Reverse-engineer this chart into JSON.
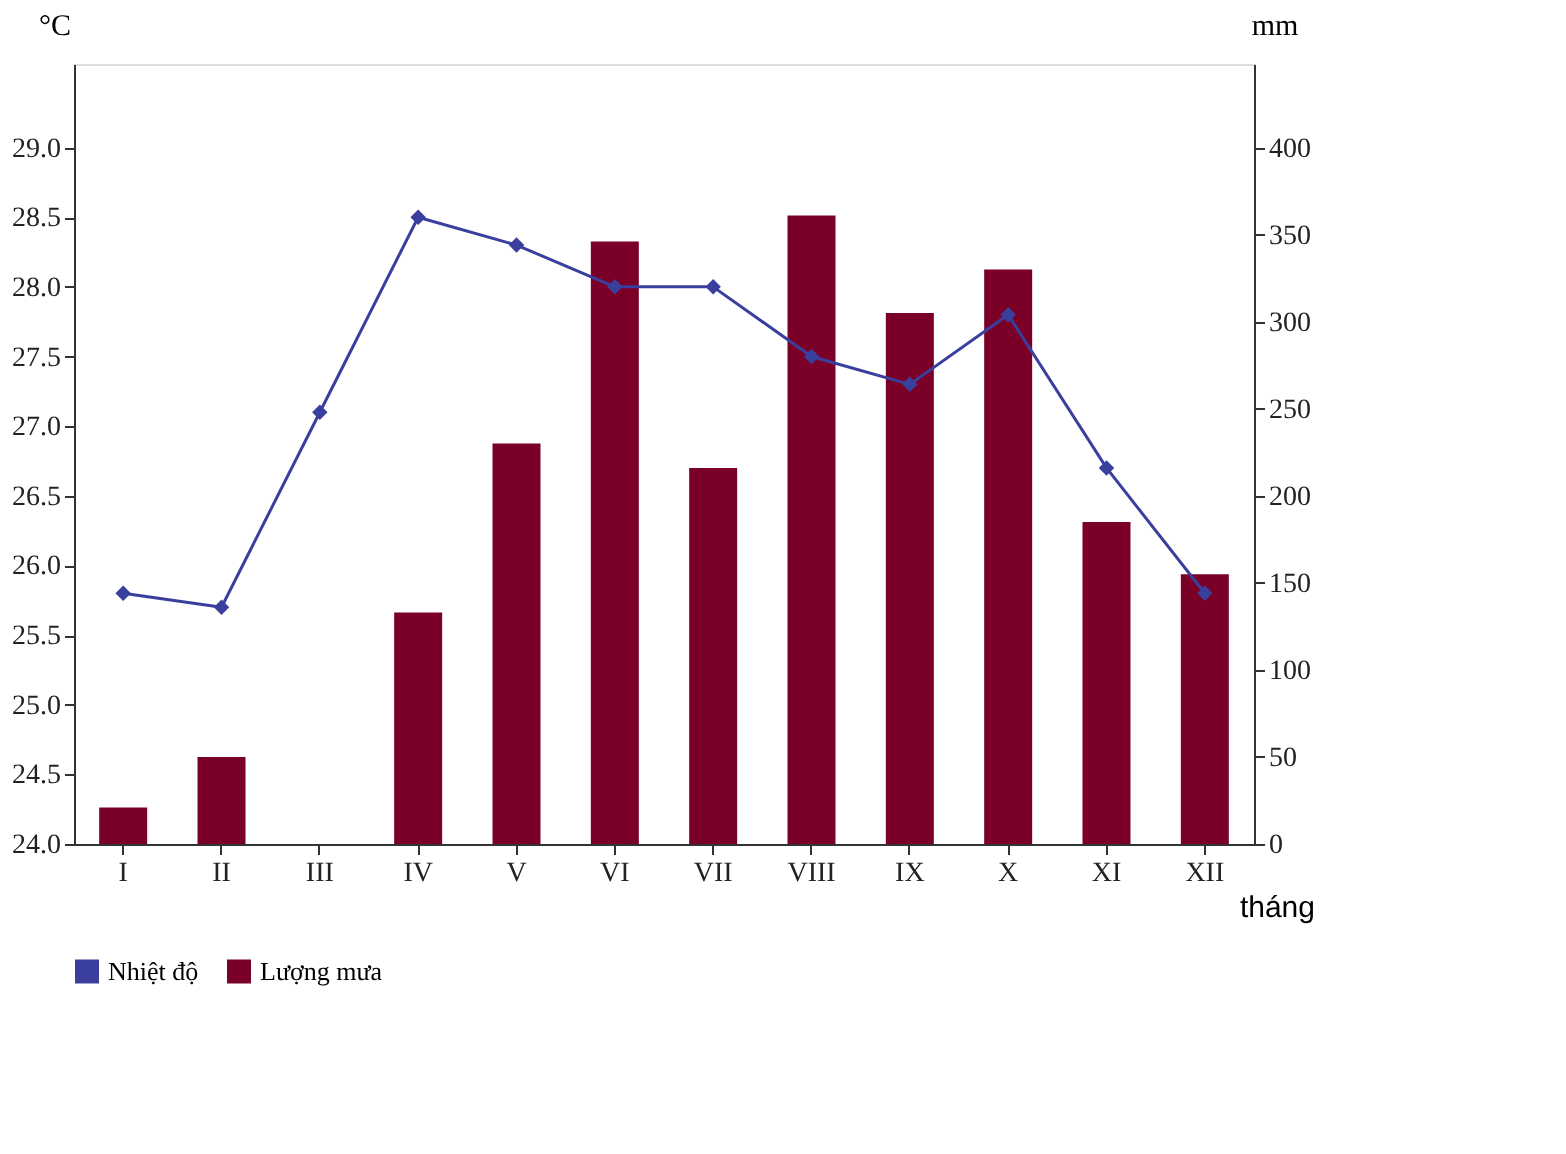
{
  "chart_data": {
    "type": "bar",
    "categories": [
      "I",
      "II",
      "III",
      "IV",
      "V",
      "VI",
      "VII",
      "VIII",
      "IX",
      "X",
      "XI",
      "XII"
    ],
    "xlabel": "tháng",
    "ylabel": "°C",
    "y2label": "mm",
    "series": [
      {
        "name": "Nhiệt độ",
        "type": "line",
        "color": "#3a3f9e",
        "marker": "diamond",
        "values": [
          25.8,
          25.7,
          27.1,
          28.5,
          28.3,
          28.0,
          28.0,
          27.5,
          27.3,
          27.8,
          26.7,
          25.8
        ]
      },
      {
        "name": "Lượng mưa",
        "axis": "y2",
        "color": "#7b0028",
        "values": [
          21,
          50,
          0,
          133,
          230,
          346,
          216,
          361,
          305,
          330,
          185,
          155
        ]
      }
    ],
    "ylim": [
      24.0,
      29.6
    ],
    "yticks": [
      {
        "value": 24,
        "label": "24.0"
      },
      {
        "value": 24.5,
        "label": "24.5"
      },
      {
        "value": 25,
        "label": "25.0"
      },
      {
        "value": 25.5,
        "label": "25.5"
      },
      {
        "value": 26,
        "label": "26.0"
      },
      {
        "value": 26.5,
        "label": "26.5"
      },
      {
        "value": 27,
        "label": "27.0"
      },
      {
        "value": 27.5,
        "label": "27.5"
      },
      {
        "value": 28,
        "label": "28.0"
      },
      {
        "value": 28.5,
        "label": "28.5"
      },
      {
        "value": 29,
        "label": "29.0"
      }
    ],
    "y2lim": [
      0,
      448
    ],
    "y2ticks": [
      0,
      50,
      100,
      150,
      200,
      250,
      300,
      350,
      400
    ],
    "grid": false,
    "legend": "bottom"
  }
}
